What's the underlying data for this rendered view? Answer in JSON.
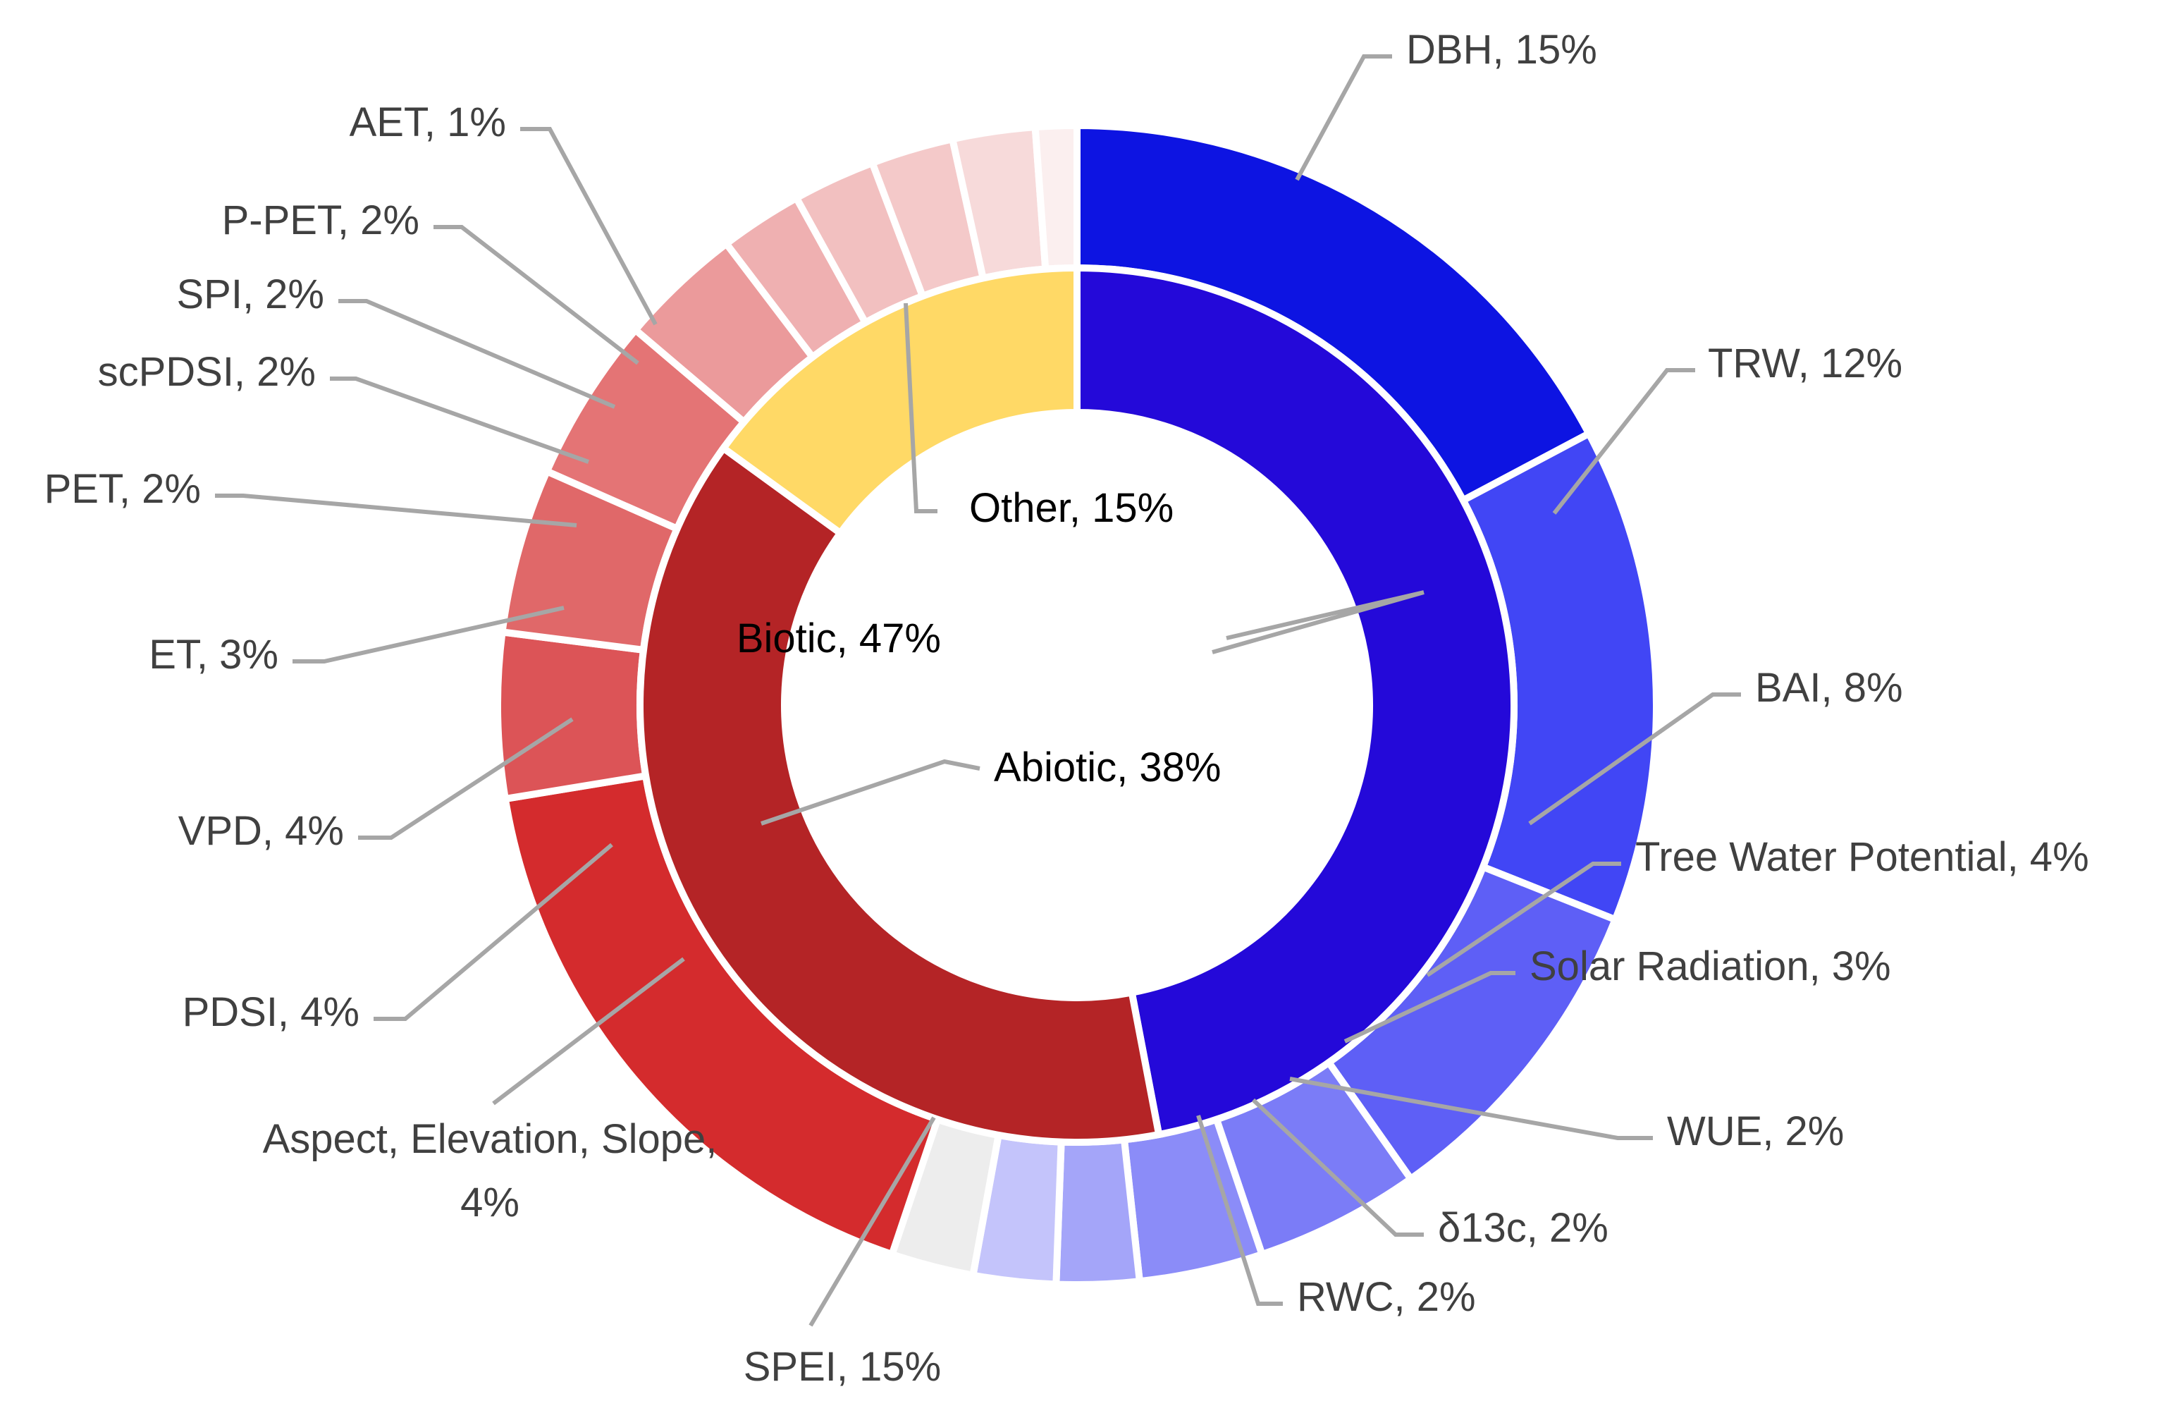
{
  "chart_data": {
    "type": "sunburst-donut",
    "title": "",
    "inner_ring": [
      {
        "name": "Biotic",
        "label": "Biotic, 47%",
        "percent": 47,
        "color": "#2409d9"
      },
      {
        "name": "Abiotic",
        "label": "Abiotic, 38%",
        "percent": 38,
        "color": "#b42426"
      },
      {
        "name": "Other",
        "label": "Other, 15%",
        "percent": 15,
        "color": "#ffd966"
      }
    ],
    "outer_ring": [
      {
        "name": "DBH",
        "label": "DBH, 15%",
        "percent": 15,
        "parent": "Biotic",
        "color": "#0d14e2"
      },
      {
        "name": "TRW",
        "label": "TRW, 12%",
        "percent": 12,
        "parent": "Biotic",
        "color": "#4146f5"
      },
      {
        "name": "BAI",
        "label": "BAI, 8%",
        "percent": 8,
        "parent": "Biotic",
        "color": "#5e5ff6"
      },
      {
        "name": "Tree Water Potential",
        "label": "Tree Water Potential, 4%",
        "percent": 4,
        "parent": "Biotic",
        "color": "#7b7cf7"
      },
      {
        "name": "Solar Radiation",
        "label": "Solar Radiation, 3%",
        "percent": 3,
        "parent": "Biotic",
        "color": "#8b8cf8"
      },
      {
        "name": "WUE",
        "label": "WUE, 2%",
        "percent": 2,
        "parent": "Biotic",
        "color": "#a4a5f9"
      },
      {
        "name": "δ13c",
        "label": "δ13c, 2%",
        "percent": 2,
        "parent": "Biotic",
        "color": "#c4c4fb"
      },
      {
        "name": "RWC",
        "label": "RWC, 2%",
        "percent": 2,
        "parent": "Biotic",
        "color": "#ededed"
      },
      {
        "name": "SPEI",
        "label": "SPEI, 15%",
        "percent": 15,
        "parent": "Abiotic",
        "color": "#d42b2d"
      },
      {
        "name": "Aspect, Elevation, Slope",
        "label": [
          "Aspect, Elevation, Slope,",
          "4%"
        ],
        "percent": 4,
        "parent": "Abiotic",
        "color": "#dc5457"
      },
      {
        "name": "PDSI",
        "label": "PDSI, 4%",
        "percent": 4,
        "parent": "Abiotic",
        "color": "#e06869"
      },
      {
        "name": "VPD",
        "label": "VPD, 4%",
        "percent": 4,
        "parent": "Abiotic",
        "color": "#e47475"
      },
      {
        "name": "ET",
        "label": "ET, 3%",
        "percent": 3,
        "parent": "Abiotic",
        "color": "#eb9a9b"
      },
      {
        "name": "PET",
        "label": "PET, 2%",
        "percent": 2,
        "parent": "Abiotic",
        "color": "#efb0b1"
      },
      {
        "name": "scPDSI",
        "label": "scPDSI, 2%",
        "percent": 2,
        "parent": "Abiotic",
        "color": "#f2c0c0"
      },
      {
        "name": "SPI",
        "label": "SPI, 2%",
        "percent": 2,
        "parent": "Abiotic",
        "color": "#f4c9c9"
      },
      {
        "name": "P-PET",
        "label": "P-PET, 2%",
        "percent": 2,
        "parent": "Abiotic",
        "color": "#f7dada"
      },
      {
        "name": "AET",
        "label": "AET, 1%",
        "percent": 1,
        "parent": "Abiotic",
        "color": "#fbefef"
      }
    ]
  }
}
